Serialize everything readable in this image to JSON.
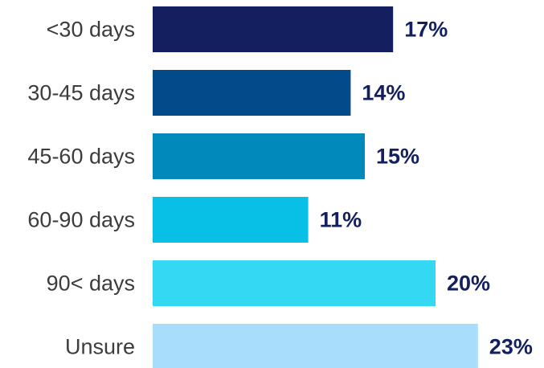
{
  "chart_data": {
    "type": "bar",
    "orientation": "horizontal",
    "categories": [
      "<30 days",
      "30-45 days",
      "45-60 days",
      "60-90 days",
      "90< days",
      "Unsure"
    ],
    "values": [
      17,
      14,
      15,
      11,
      20,
      23
    ],
    "value_labels": [
      "17%",
      "14%",
      "15%",
      "11%",
      "20%",
      "23%"
    ],
    "colors": [
      "#131f5e",
      "#034a8a",
      "#0189bb",
      "#08bfe6",
      "#34d8f3",
      "#a8ddfb"
    ]
  }
}
